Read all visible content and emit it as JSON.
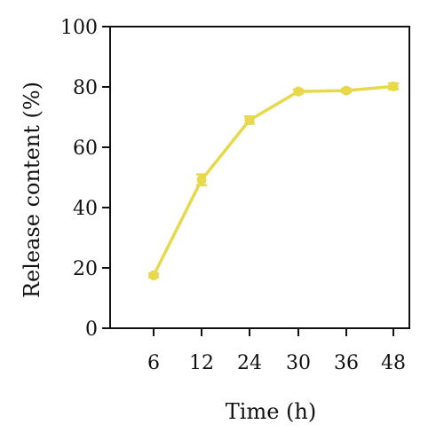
{
  "chart_data": {
    "type": "line",
    "title": "",
    "xlabel": "Time (h)",
    "ylabel": "Release content (%)",
    "categories": [
      "6",
      "12",
      "24",
      "30",
      "36",
      "48"
    ],
    "ylim": [
      0,
      100
    ],
    "yticks": [
      0,
      20,
      40,
      60,
      80,
      100
    ],
    "grid": false,
    "legend": "none",
    "series": [
      {
        "values": [
          17.5,
          49.2,
          69.0,
          78.5,
          78.8,
          80.2
        ],
        "errors": [
          0.6,
          1.8,
          1.2,
          0.7,
          0.6,
          1.0
        ],
        "color": "#e8d84b"
      }
    ]
  }
}
